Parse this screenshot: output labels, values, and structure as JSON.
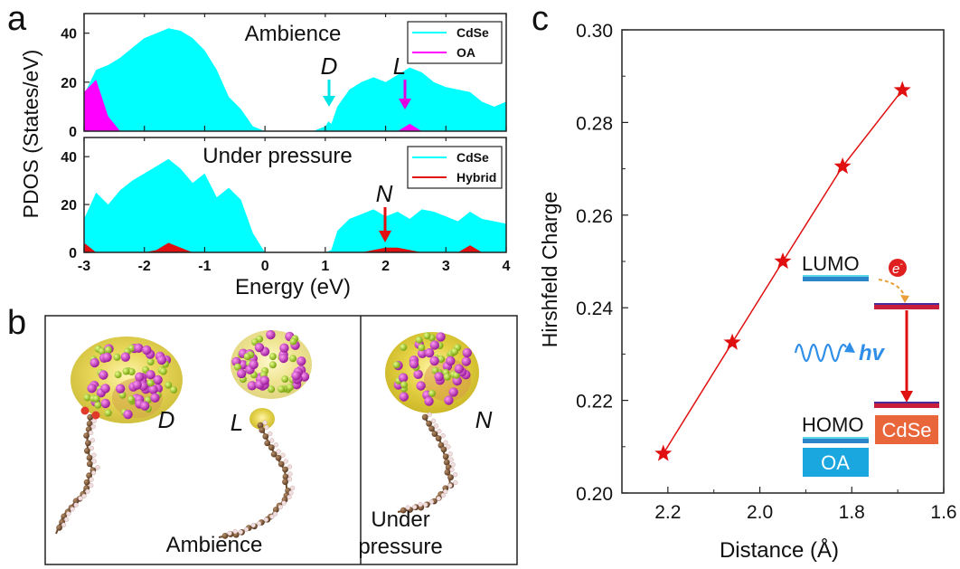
{
  "panel_labels": {
    "a": "a",
    "b": "b",
    "c": "c"
  },
  "colors": {
    "cdse": "#00ffff",
    "oa": "#ff00ff",
    "hybrid": "#e01010",
    "curve": "#e01010",
    "lumo_bar": "#2a86c8",
    "cdse_box": "#e8663a",
    "oa_box": "#1aa7e0",
    "hv": "#2f8fe8"
  },
  "chart_data": [
    {
      "type": "area",
      "panel": "a",
      "title": "Ambience",
      "xlabel": "Energy (eV)",
      "ylabel": "PDOS (States/eV)",
      "xlim": [
        -3,
        4
      ],
      "ylim": [
        0,
        48
      ],
      "yticks": [
        "0",
        "20",
        "40"
      ],
      "legend": {
        "position": "top-right",
        "entries": [
          "CdSe",
          "OA"
        ]
      },
      "grid": false,
      "x": [
        -3.0,
        -2.8,
        -2.6,
        -2.4,
        -2.2,
        -2.0,
        -1.8,
        -1.6,
        -1.4,
        -1.2,
        -1.0,
        -0.8,
        -0.6,
        -0.4,
        -0.2,
        0.0,
        0.2,
        0.4,
        0.6,
        0.8,
        0.9,
        1.0,
        1.05,
        1.1,
        1.2,
        1.4,
        1.6,
        1.8,
        2.0,
        2.2,
        2.4,
        2.6,
        2.8,
        3.0,
        3.2,
        3.4,
        3.6,
        3.8,
        4.0
      ],
      "series": [
        {
          "name": "CdSe",
          "values": [
            15,
            25,
            27,
            30,
            34,
            38,
            40,
            42,
            41,
            38,
            33,
            25,
            14,
            9,
            2,
            0,
            0,
            0,
            0,
            0,
            1,
            2,
            4,
            3,
            10,
            17,
            20,
            22,
            20,
            23,
            26,
            24,
            20,
            18,
            17,
            16,
            12,
            10,
            12
          ]
        },
        {
          "name": "OA",
          "values": [
            16,
            21,
            6,
            0,
            0,
            0,
            0,
            0,
            0,
            0,
            0,
            0,
            0,
            0,
            0,
            0,
            0,
            0,
            0,
            0,
            0,
            0,
            0,
            0,
            0,
            0,
            0,
            0,
            0,
            0,
            3,
            0,
            0,
            0,
            0,
            0,
            0,
            0,
            0
          ]
        }
      ],
      "annotations": [
        {
          "text": "D",
          "x": 1.05,
          "arrow_color": "#00ffff"
        },
        {
          "text": "L",
          "x": 2.3,
          "arrow_color": "#ff00ff"
        }
      ]
    },
    {
      "type": "area",
      "panel": "a",
      "title": "Under pressure",
      "xlabel": "Energy (eV)",
      "ylabel": "PDOS (States/eV)",
      "xlim": [
        -3,
        4
      ],
      "ylim": [
        0,
        48
      ],
      "xticks": [
        "-3",
        "-2",
        "-1",
        "0",
        "1",
        "2",
        "3",
        "4"
      ],
      "yticks": [
        "0",
        "20",
        "40"
      ],
      "legend": {
        "position": "top-right",
        "entries": [
          "CdSe",
          "Hybrid"
        ]
      },
      "grid": false,
      "x": [
        -3.0,
        -2.8,
        -2.6,
        -2.4,
        -2.2,
        -2.0,
        -1.8,
        -1.6,
        -1.4,
        -1.2,
        -1.0,
        -0.8,
        -0.6,
        -0.4,
        -0.2,
        0.0,
        0.2,
        0.4,
        0.6,
        0.8,
        1.0,
        1.1,
        1.2,
        1.4,
        1.6,
        1.8,
        2.0,
        2.2,
        2.4,
        2.6,
        2.8,
        3.0,
        3.2,
        3.4,
        3.6,
        3.8,
        4.0
      ],
      "series": [
        {
          "name": "CdSe",
          "values": [
            14,
            25,
            20,
            26,
            30,
            33,
            36,
            39,
            35,
            29,
            33,
            23,
            27,
            22,
            8,
            0,
            0,
            0,
            0,
            0,
            0,
            1,
            9,
            14,
            16,
            18,
            15,
            17,
            14,
            18,
            17,
            15,
            13,
            17,
            14,
            13,
            12
          ]
        },
        {
          "name": "Hybrid",
          "values": [
            4,
            0,
            0,
            0,
            0,
            0,
            1,
            4,
            2,
            0,
            0,
            0,
            0,
            0,
            0,
            0,
            0,
            0,
            0,
            0,
            0,
            0,
            0,
            0,
            0,
            1,
            2,
            2,
            1,
            0,
            0,
            0,
            0,
            3,
            0,
            0,
            0
          ]
        }
      ],
      "annotations": [
        {
          "text": "N",
          "x": 2.0,
          "arrow_color": "#e01010"
        }
      ]
    },
    {
      "type": "line",
      "panel": "c",
      "xlabel": "Distance (Å)",
      "ylabel": "Hirshfeld Charge",
      "xlim": [
        2.3,
        1.6
      ],
      "x_reversed": true,
      "ylim": [
        0.2,
        0.3
      ],
      "xticks": [
        "2.2",
        "2.0",
        "1.8",
        "1.6"
      ],
      "yticks": [
        "0.20",
        "0.22",
        "0.24",
        "0.26",
        "0.28",
        "0.30"
      ],
      "marker": "star",
      "grid": false,
      "x": [
        2.21,
        2.06,
        1.95,
        1.82,
        1.69
      ],
      "values": [
        0.2085,
        0.2325,
        0.25,
        0.2705,
        0.287
      ]
    }
  ],
  "panel_b": {
    "labels": [
      "D",
      "L",
      "N"
    ],
    "captions": [
      "Ambience",
      "Under",
      "pressure"
    ]
  },
  "inset_c": {
    "lumo": "LUMO",
    "homo": "HOMO",
    "electron": "e",
    "electron_sup": "-",
    "hv": "hv",
    "cdse": "CdSe",
    "oa": "OA"
  }
}
